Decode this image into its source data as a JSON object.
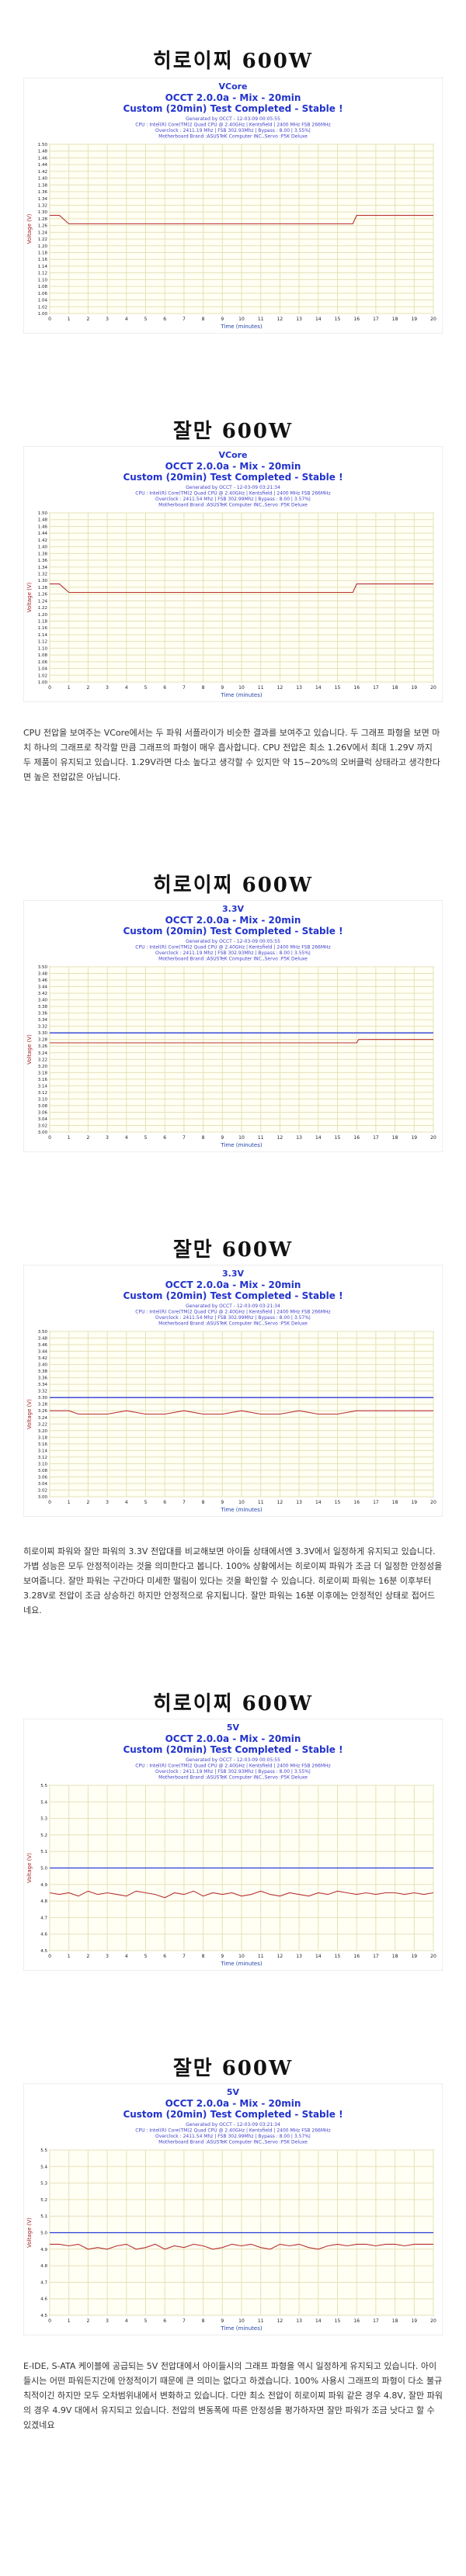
{
  "sections": [
    {
      "heading": "히로이찌 600W"
    },
    {
      "heading": "잘만 600W"
    },
    {
      "paragraph": "CPU 전압을 보여주는 VCore에서는 두 파워 서플라이가 비슷한 결과를 보여주고 있습니다. 두 그래프 파형을 보면 마치 하나의 그래프로 착각할 만큼 그래프의 파형이 매우 흡사합니다. CPU 전압은 최소 1.26V에서 최대 1.29V 까지 두 제품이 유지되고 있습니다. 1.29V라면 다소 높다고 생각할 수 있지만 약 15~20%의 오버클럭 상태라고 생각한다면 높은 전압값은 아닙니다."
    },
    {
      "heading": "히로이찌 600W"
    },
    {
      "heading": "잘만 600W"
    },
    {
      "paragraph": "히로이찌 파워와 잘만 파워의 3.3V 전압대를 비교해보면 아이들 상태에서엔 3.3V에서 일정하게 유지되고 있습니다. 가볍 성능은 모두 안정적이라는 것을 의미한다고 봅니다. 100% 상황에서는 히로이찌 파워가 조금 더 일정한 안정성을 보여줍니다. 잘만 파워는 구간마다 미세한 떨림이 있다는 것을 확인할 수 있습니다. 히로이찌 파워는 16분 이후부터 3.28V로 전압이 조금 상승하긴 하지만 안정적으로 유지됩니다. 잘만 파워는 16분 이후에는 안정적인 상태로 접어드네요."
    },
    {
      "heading": "히로이찌 600W"
    },
    {
      "heading": "잘만 600W"
    },
    {
      "paragraph": "E-IDE, S-ATA 케이블에 공급되는 5V 전압대에서 아이들시의 그래프 파형을 역시 일정하게 유지되고 있습니다. 아이들시는 어떤 파워든지간에 안정적이기 때문에 큰 의미는 없다고 하겠습니다. 100% 사용시 그래프의 파형이 다소 불규칙적이긴 하지만 모두 오차범위내에서 변화하고 있습니다. 다만 최소 전압이 히로이찌 파워 같은 경우 4.8V, 잘만 파워의 경우 4.9V 대에서 유지되고 있습니다. 전압의 변동폭에 따른 안정성을 평가하자면 잘만 파워가 조금 낫다고 할 수 있겠네요"
    }
  ],
  "chart_data": [
    {
      "type": "line",
      "title": "VCore",
      "subtitle": "OCCT 2.0.0a - Mix - 20min",
      "status": "Custom (20min) Test Completed - Stable !",
      "info": [
        "Generated by OCCT - 12-03-09 00:05:55",
        "CPU : Intel(R) Core(TM)2 Quad CPU @ 2.40GHz | Kentsfield | 2400 MHz FSB 266MHz",
        "Overclock : 2411.19 Mhz | FSB 302.93Mhz | Bypass : 8.00 | 3.55%|",
        "Motherboard Brand :ASUSTeK Computer INC.,Servo :P5K Deluxe"
      ],
      "xlabel": "Time (minutes)",
      "ylabel": "Voltage (V)",
      "xlim": [
        0,
        20
      ],
      "ylim": [
        1.0,
        1.5
      ],
      "xticks": [
        0,
        1,
        2,
        3,
        4,
        5,
        6,
        7,
        8,
        9,
        10,
        11,
        12,
        13,
        14,
        15,
        16,
        17,
        18,
        19,
        20
      ],
      "yticks": [
        1.0,
        1.02,
        1.04,
        1.06,
        1.08,
        1.1,
        1.12,
        1.14,
        1.16,
        1.18,
        1.2,
        1.22,
        1.24,
        1.26,
        1.28,
        1.3,
        1.32,
        1.34,
        1.36,
        1.38,
        1.4,
        1.42,
        1.44,
        1.46,
        1.48,
        1.5
      ],
      "grid": true,
      "x": [
        0,
        0.5,
        1,
        1.5,
        2,
        3,
        4,
        5,
        6,
        7,
        8,
        9,
        10,
        11,
        12,
        13,
        14,
        15,
        15.8,
        16,
        17,
        18,
        19,
        20
      ],
      "series": [
        {
          "values": [
            1.29,
            1.29,
            1.265,
            1.265,
            1.265,
            1.265,
            1.265,
            1.265,
            1.265,
            1.265,
            1.265,
            1.265,
            1.265,
            1.265,
            1.265,
            1.265,
            1.265,
            1.265,
            1.265,
            1.29,
            1.29,
            1.29,
            1.29,
            1.29
          ],
          "color": "#b83030"
        }
      ]
    },
    {
      "type": "line",
      "title": "VCore",
      "subtitle": "OCCT 2.0.0a - Mix - 20min",
      "status": "Custom (20min) Test Completed - Stable !",
      "info": [
        "Generated by OCCT - 12-03-09 03:21:34",
        "CPU : Intel(R) Core(TM)2 Quad CPU @ 2.40GHz | Kentsfield | 2400 MHz FSB 266MHz",
        "Overclock : 2411.54 Mhz | FSB 302.99Mhz | Bypass : 8.00 | 3.57%|",
        "Motherboard Brand :ASUSTeK Computer INC.,Servo :P5K Deluxe"
      ],
      "xlabel": "Time (minutes)",
      "ylabel": "Voltage (V)",
      "xlim": [
        0,
        20
      ],
      "ylim": [
        1.0,
        1.5
      ],
      "xticks": [
        0,
        1,
        2,
        3,
        4,
        5,
        6,
        7,
        8,
        9,
        10,
        11,
        12,
        13,
        14,
        15,
        16,
        17,
        18,
        19,
        20
      ],
      "yticks": [
        1.0,
        1.02,
        1.04,
        1.06,
        1.08,
        1.1,
        1.12,
        1.14,
        1.16,
        1.18,
        1.2,
        1.22,
        1.24,
        1.26,
        1.28,
        1.3,
        1.32,
        1.34,
        1.36,
        1.38,
        1.4,
        1.42,
        1.44,
        1.46,
        1.48,
        1.5
      ],
      "grid": true,
      "x": [
        0,
        0.5,
        1,
        1.5,
        2,
        3,
        4,
        5,
        6,
        7,
        8,
        9,
        10,
        11,
        12,
        13,
        14,
        15,
        15.8,
        16,
        17,
        18,
        19,
        20
      ],
      "series": [
        {
          "values": [
            1.29,
            1.29,
            1.265,
            1.265,
            1.265,
            1.265,
            1.265,
            1.265,
            1.265,
            1.265,
            1.265,
            1.265,
            1.265,
            1.265,
            1.265,
            1.265,
            1.265,
            1.265,
            1.265,
            1.29,
            1.29,
            1.29,
            1.29,
            1.29
          ],
          "color": "#b83030"
        }
      ]
    },
    {
      "type": "line",
      "title": "3.3V",
      "subtitle": "OCCT 2.0.0a - Mix - 20min",
      "status": "Custom (20min) Test Completed - Stable !",
      "info": [
        "Generated by OCCT - 12-03-09 00:05:55",
        "CPU : Intel(R) Core(TM)2 Quad CPU @ 2.40GHz | Kentsfield | 2400 MHz FSB 266MHz",
        "Overclock : 2411.19 Mhz | FSB 302.93Mhz | Bypass : 8.00 | 3.55%|",
        "Motherboard Brand :ASUSTeK Computer INC.,Servo :P5K Deluxe"
      ],
      "xlabel": "Time (minutes)",
      "ylabel": "Voltage (V)",
      "xlim": [
        0,
        20
      ],
      "ylim": [
        3.0,
        3.5
      ],
      "xticks": [
        0,
        1,
        2,
        3,
        4,
        5,
        6,
        7,
        8,
        9,
        10,
        11,
        12,
        13,
        14,
        15,
        16,
        17,
        18,
        19,
        20
      ],
      "yticks": [
        3.0,
        3.02,
        3.04,
        3.06,
        3.08,
        3.1,
        3.12,
        3.14,
        3.16,
        3.18,
        3.2,
        3.22,
        3.24,
        3.26,
        3.28,
        3.3,
        3.32,
        3.34,
        3.36,
        3.38,
        3.4,
        3.42,
        3.44,
        3.46,
        3.48,
        3.5
      ],
      "grid": true,
      "reference": 3.3,
      "x": [
        0,
        2,
        4,
        6,
        8,
        10,
        12,
        14,
        16,
        16.1,
        18,
        20
      ],
      "series": [
        {
          "values": [
            3.27,
            3.27,
            3.27,
            3.27,
            3.27,
            3.27,
            3.27,
            3.27,
            3.27,
            3.28,
            3.28,
            3.28
          ],
          "color": "#b83030"
        }
      ]
    },
    {
      "type": "line",
      "title": "3.3V",
      "subtitle": "OCCT 2.0.0a - Mix - 20min",
      "status": "Custom (20min) Test Completed - Stable !",
      "info": [
        "Generated by OCCT - 12-03-09 03:21:34",
        "CPU : Intel(R) Core(TM)2 Quad CPU @ 2.40GHz | Kentsfield | 2400 MHz FSB 266MHz",
        "Overclock : 2411.54 Mhz | FSB 302.99Mhz | Bypass : 8.00 | 3.57%|",
        "Motherboard Brand :ASUSTeK Computer INC.,Servo :P5K Deluxe"
      ],
      "xlabel": "Time (minutes)",
      "ylabel": "Voltage (V)",
      "xlim": [
        0,
        20
      ],
      "ylim": [
        3.0,
        3.5
      ],
      "xticks": [
        0,
        1,
        2,
        3,
        4,
        5,
        6,
        7,
        8,
        9,
        10,
        11,
        12,
        13,
        14,
        15,
        16,
        17,
        18,
        19,
        20
      ],
      "yticks": [
        3.0,
        3.02,
        3.04,
        3.06,
        3.08,
        3.1,
        3.12,
        3.14,
        3.16,
        3.18,
        3.2,
        3.22,
        3.24,
        3.26,
        3.28,
        3.3,
        3.32,
        3.34,
        3.36,
        3.38,
        3.4,
        3.42,
        3.44,
        3.46,
        3.48,
        3.5
      ],
      "grid": true,
      "reference": 3.3,
      "x": [
        0,
        1,
        1.5,
        2,
        3,
        4,
        5,
        6,
        7,
        8,
        9,
        10,
        11,
        12,
        13,
        14,
        15,
        16,
        17,
        18,
        19,
        20
      ],
      "series": [
        {
          "values": [
            3.26,
            3.26,
            3.25,
            3.25,
            3.25,
            3.26,
            3.25,
            3.25,
            3.26,
            3.25,
            3.25,
            3.26,
            3.25,
            3.25,
            3.26,
            3.25,
            3.25,
            3.26,
            3.26,
            3.26,
            3.26,
            3.26
          ],
          "color": "#b83030"
        }
      ]
    },
    {
      "type": "line",
      "title": "5V",
      "subtitle": "OCCT 2.0.0a - Mix - 20min",
      "status": "Custom (20min) Test Completed - Stable !",
      "info": [
        "Generated by OCCT - 12-03-09 00:05:55",
        "CPU : Intel(R) Core(TM)2 Quad CPU @ 2.40GHz | Kentsfield | 2400 MHz FSB 266MHz",
        "Overclock : 2411.19 Mhz | FSB 302.93Mhz | Bypass : 8.00 | 3.55%|",
        "Motherboard Brand :ASUSTeK Computer INC.,Servo :P5K Deluxe"
      ],
      "xlabel": "Time (minutes)",
      "ylabel": "Voltage (V)",
      "xlim": [
        0,
        20
      ],
      "ylim": [
        4.5,
        5.5
      ],
      "xticks": [
        0,
        1,
        2,
        3,
        4,
        5,
        6,
        7,
        8,
        9,
        10,
        11,
        12,
        13,
        14,
        15,
        16,
        17,
        18,
        19,
        20
      ],
      "yticks": [
        4.5,
        4.6,
        4.7,
        4.8,
        4.9,
        5.0,
        5.1,
        5.2,
        5.3,
        5.4,
        5.5
      ],
      "grid": true,
      "reference": 5.0,
      "x": [
        0,
        0.5,
        1,
        1.5,
        2,
        2.5,
        3,
        3.5,
        4,
        4.5,
        5,
        5.5,
        6,
        6.5,
        7,
        7.5,
        8,
        8.5,
        9,
        9.5,
        10,
        10.5,
        11,
        11.5,
        12,
        12.5,
        13,
        13.5,
        14,
        14.5,
        15,
        15.5,
        16,
        16.5,
        17,
        17.5,
        18,
        18.5,
        19,
        19.5,
        20
      ],
      "series": [
        {
          "values": [
            4.85,
            4.84,
            4.85,
            4.83,
            4.86,
            4.84,
            4.85,
            4.84,
            4.83,
            4.86,
            4.85,
            4.84,
            4.82,
            4.85,
            4.84,
            4.86,
            4.83,
            4.85,
            4.84,
            4.85,
            4.83,
            4.84,
            4.86,
            4.84,
            4.83,
            4.85,
            4.84,
            4.83,
            4.85,
            4.84,
            4.86,
            4.85,
            4.84,
            4.85,
            4.84,
            4.85,
            4.85,
            4.84,
            4.85,
            4.84,
            4.85
          ],
          "color": "#b83030"
        }
      ]
    },
    {
      "type": "line",
      "title": "5V",
      "subtitle": "OCCT 2.0.0a - Mix - 20min",
      "status": "Custom (20min) Test Completed - Stable !",
      "info": [
        "Generated by OCCT - 12-03-09 03:21:34",
        "CPU : Intel(R) Core(TM)2 Quad CPU @ 2.40GHz | Kentsfield | 2400 MHz FSB 266MHz",
        "Overclock : 2411.54 Mhz | FSB 302.99Mhz | Bypass : 8.00 | 3.57%|",
        "Motherboard Brand :ASUSTeK Computer INC.,Servo :P5K Deluxe"
      ],
      "xlabel": "Time (minutes)",
      "ylabel": "Voltage (V)",
      "xlim": [
        0,
        20
      ],
      "ylim": [
        4.5,
        5.5
      ],
      "xticks": [
        0,
        1,
        2,
        3,
        4,
        5,
        6,
        7,
        8,
        9,
        10,
        11,
        12,
        13,
        14,
        15,
        16,
        17,
        18,
        19,
        20
      ],
      "yticks": [
        4.5,
        4.6,
        4.7,
        4.8,
        4.9,
        5.0,
        5.1,
        5.2,
        5.3,
        5.4,
        5.5
      ],
      "grid": true,
      "reference": 5.0,
      "x": [
        0,
        0.5,
        1,
        1.5,
        2,
        2.5,
        3,
        3.5,
        4,
        4.5,
        5,
        5.5,
        6,
        6.5,
        7,
        7.5,
        8,
        8.5,
        9,
        9.5,
        10,
        10.5,
        11,
        11.5,
        12,
        12.5,
        13,
        13.5,
        14,
        14.5,
        15,
        15.5,
        16,
        16.5,
        17,
        17.5,
        18,
        18.5,
        19,
        19.5,
        20
      ],
      "series": [
        {
          "values": [
            4.93,
            4.93,
            4.92,
            4.93,
            4.9,
            4.91,
            4.9,
            4.92,
            4.93,
            4.9,
            4.91,
            4.93,
            4.9,
            4.92,
            4.91,
            4.93,
            4.92,
            4.9,
            4.91,
            4.93,
            4.92,
            4.93,
            4.91,
            4.9,
            4.93,
            4.92,
            4.93,
            4.91,
            4.9,
            4.92,
            4.93,
            4.92,
            4.93,
            4.93,
            4.92,
            4.93,
            4.93,
            4.92,
            4.93,
            4.93,
            4.93
          ],
          "color": "#b83030"
        }
      ]
    }
  ]
}
